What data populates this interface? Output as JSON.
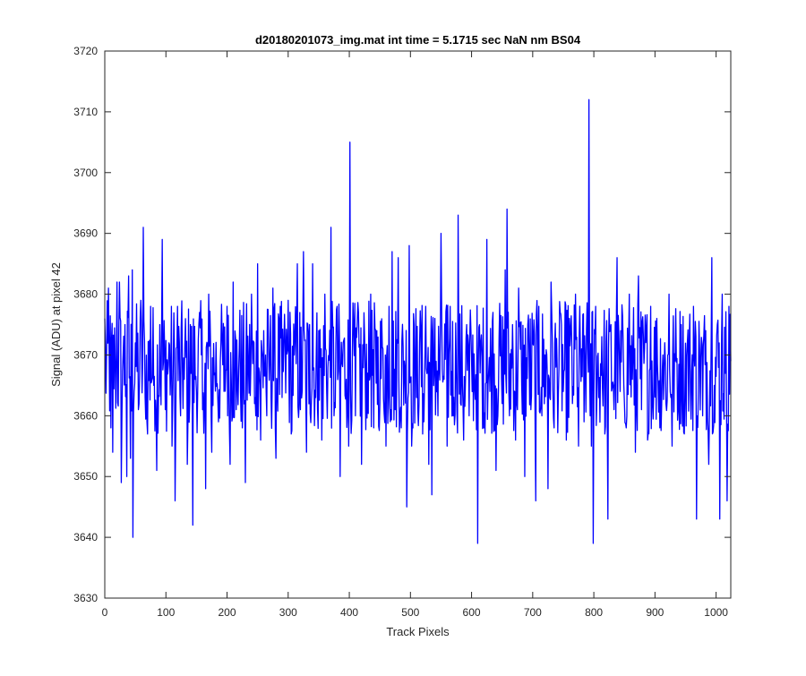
{
  "chart_data": {
    "type": "line",
    "title": "d20180201073_img.mat int time = 5.1715 sec  NaN nm BS04",
    "xlabel": "Track Pixels",
    "ylabel": "Signal (ADU) at pixel 42",
    "xlim": [
      0,
      1024
    ],
    "ylim": [
      3630,
      3720
    ],
    "xticks": [
      0,
      100,
      200,
      300,
      400,
      500,
      600,
      700,
      800,
      900,
      1000
    ],
    "yticks": [
      3630,
      3640,
      3650,
      3660,
      3670,
      3680,
      3690,
      3700,
      3710,
      3720
    ],
    "grid": false,
    "line_color": "#0000ff",
    "mean_value": 3668,
    "series": [
      {
        "points": [
          [
            0,
            3676
          ],
          [
            6,
            3681
          ],
          [
            10,
            3658
          ],
          [
            13,
            3654
          ],
          [
            17,
            3669
          ],
          [
            20,
            3682
          ],
          [
            24,
            3682
          ],
          [
            27,
            3649
          ],
          [
            30,
            3670
          ],
          [
            33,
            3675
          ],
          [
            36,
            3650
          ],
          [
            39,
            3683
          ],
          [
            42,
            3653
          ],
          [
            45,
            3684
          ],
          [
            46,
            3640
          ],
          [
            50,
            3672
          ],
          [
            55,
            3661
          ],
          [
            59,
            3679
          ],
          [
            63,
            3691
          ],
          [
            66,
            3663
          ],
          [
            70,
            3657
          ],
          [
            75,
            3678
          ],
          [
            80,
            3665
          ],
          [
            85,
            3651
          ],
          [
            90,
            3675
          ],
          [
            94,
            3689
          ],
          [
            99,
            3661
          ],
          [
            105,
            3672
          ],
          [
            110,
            3655
          ],
          [
            115,
            3646
          ],
          [
            119,
            3678
          ],
          [
            124,
            3660
          ],
          [
            130,
            3666
          ],
          [
            135,
            3652
          ],
          [
            140,
            3675
          ],
          [
            144,
            3642
          ],
          [
            150,
            3664
          ],
          [
            155,
            3677
          ],
          [
            160,
            3661
          ],
          [
            165,
            3648
          ],
          [
            170,
            3680
          ],
          [
            175,
            3654
          ],
          [
            180,
            3667
          ],
          [
            186,
            3659
          ],
          [
            190,
            3672
          ],
          [
            195,
            3664
          ],
          [
            200,
            3678
          ],
          [
            205,
            3652
          ],
          [
            210,
            3682
          ],
          [
            215,
            3661
          ],
          [
            220,
            3671
          ],
          [
            225,
            3658
          ],
          [
            230,
            3649
          ],
          [
            235,
            3668
          ],
          [
            240,
            3680
          ],
          [
            245,
            3662
          ],
          [
            250,
            3685
          ],
          [
            255,
            3656
          ],
          [
            260,
            3674
          ],
          [
            265,
            3660
          ],
          [
            270,
            3670
          ],
          [
            275,
            3681
          ],
          [
            280,
            3653
          ],
          [
            285,
            3676
          ],
          [
            290,
            3663
          ],
          [
            295,
            3672
          ],
          [
            300,
            3679
          ],
          [
            305,
            3657
          ],
          [
            310,
            3670
          ],
          [
            315,
            3685
          ],
          [
            320,
            3661
          ],
          [
            325,
            3687
          ],
          [
            330,
            3654
          ],
          [
            335,
            3675
          ],
          [
            340,
            3685
          ],
          [
            345,
            3663
          ],
          [
            350,
            3674
          ],
          [
            355,
            3656
          ],
          [
            360,
            3680
          ],
          [
            365,
            3668
          ],
          [
            370,
            3691
          ],
          [
            375,
            3660
          ],
          [
            380,
            3678
          ],
          [
            385,
            3650
          ],
          [
            390,
            3672
          ],
          [
            395,
            3666
          ],
          [
            399,
            3655
          ],
          [
            401,
            3705
          ],
          [
            405,
            3670
          ],
          [
            410,
            3660
          ],
          [
            415,
            3677
          ],
          [
            420,
            3652
          ],
          [
            425,
            3673
          ],
          [
            430,
            3667
          ],
          [
            435,
            3680
          ],
          [
            440,
            3658
          ],
          [
            445,
            3674
          ],
          [
            450,
            3662
          ],
          [
            455,
            3671
          ],
          [
            460,
            3655
          ],
          [
            465,
            3678
          ],
          [
            470,
            3687
          ],
          [
            475,
            3661
          ],
          [
            480,
            3686
          ],
          [
            485,
            3658
          ],
          [
            490,
            3669
          ],
          [
            494,
            3645
          ],
          [
            498,
            3688
          ],
          [
            502,
            3655
          ],
          [
            506,
            3675
          ],
          [
            510,
            3663
          ],
          [
            515,
            3672
          ],
          [
            520,
            3657
          ],
          [
            525,
            3678
          ],
          [
            530,
            3652
          ],
          [
            535,
            3647
          ],
          [
            540,
            3676
          ],
          [
            545,
            3660
          ],
          [
            550,
            3690
          ],
          [
            555,
            3666
          ],
          [
            560,
            3655
          ],
          [
            565,
            3678
          ],
          [
            570,
            3660
          ],
          [
            575,
            3669
          ],
          [
            578,
            3693
          ],
          [
            582,
            3662
          ],
          [
            587,
            3656
          ],
          [
            592,
            3675
          ],
          [
            596,
            3660
          ],
          [
            600,
            3669
          ],
          [
            605,
            3665
          ],
          [
            610,
            3639
          ],
          [
            615,
            3672
          ],
          [
            620,
            3658
          ],
          [
            625,
            3689
          ],
          [
            630,
            3664
          ],
          [
            635,
            3677
          ],
          [
            640,
            3651
          ],
          [
            645,
            3673
          ],
          [
            650,
            3662
          ],
          [
            655,
            3684
          ],
          [
            658,
            3694
          ],
          [
            662,
            3660
          ],
          [
            667,
            3675
          ],
          [
            672,
            3656
          ],
          [
            677,
            3681
          ],
          [
            682,
            3665
          ],
          [
            687,
            3650
          ],
          [
            692,
            3675
          ],
          [
            697,
            3661
          ],
          [
            700,
            3672
          ],
          [
            705,
            3646
          ],
          [
            710,
            3678
          ],
          [
            715,
            3660
          ],
          [
            720,
            3670
          ],
          [
            725,
            3648
          ],
          [
            730,
            3682
          ],
          [
            735,
            3658
          ],
          [
            740,
            3668
          ],
          [
            745,
            3677
          ],
          [
            750,
            3664
          ],
          [
            755,
            3656
          ],
          [
            760,
            3676
          ],
          [
            765,
            3662
          ],
          [
            770,
            3680
          ],
          [
            775,
            3655
          ],
          [
            780,
            3671
          ],
          [
            784,
            3659
          ],
          [
            788,
            3674
          ],
          [
            792,
            3712
          ],
          [
            796,
            3655
          ],
          [
            799,
            3639
          ],
          [
            803,
            3678
          ],
          [
            808,
            3663
          ],
          [
            813,
            3673
          ],
          [
            818,
            3657
          ],
          [
            823,
            3643
          ],
          [
            828,
            3675
          ],
          [
            833,
            3661
          ],
          [
            838,
            3686
          ],
          [
            843,
            3664
          ],
          [
            848,
            3672
          ],
          [
            853,
            3658
          ],
          [
            858,
            3680
          ],
          [
            863,
            3666
          ],
          [
            868,
            3654
          ],
          [
            873,
            3683
          ],
          [
            878,
            3661
          ],
          [
            883,
            3671
          ],
          [
            888,
            3656
          ],
          [
            893,
            3678
          ],
          [
            898,
            3664
          ],
          [
            903,
            3676
          ],
          [
            908,
            3658
          ],
          [
            913,
            3670
          ],
          [
            918,
            3662
          ],
          [
            923,
            3680
          ],
          [
            928,
            3655
          ],
          [
            933,
            3669
          ],
          [
            938,
            3661
          ],
          [
            943,
            3675
          ],
          [
            948,
            3657
          ],
          [
            953,
            3672
          ],
          [
            958,
            3664
          ],
          [
            963,
            3678
          ],
          [
            968,
            3643
          ],
          [
            973,
            3671
          ],
          [
            978,
            3660
          ],
          [
            983,
            3674
          ],
          [
            988,
            3652
          ],
          [
            993,
            3686
          ],
          [
            997,
            3665
          ],
          [
            1002,
            3675
          ],
          [
            1006,
            3643
          ],
          [
            1010,
            3680
          ],
          [
            1015,
            3667
          ],
          [
            1018,
            3646
          ],
          [
            1021,
            3678
          ],
          [
            1024,
            3669
          ]
        ]
      }
    ]
  }
}
